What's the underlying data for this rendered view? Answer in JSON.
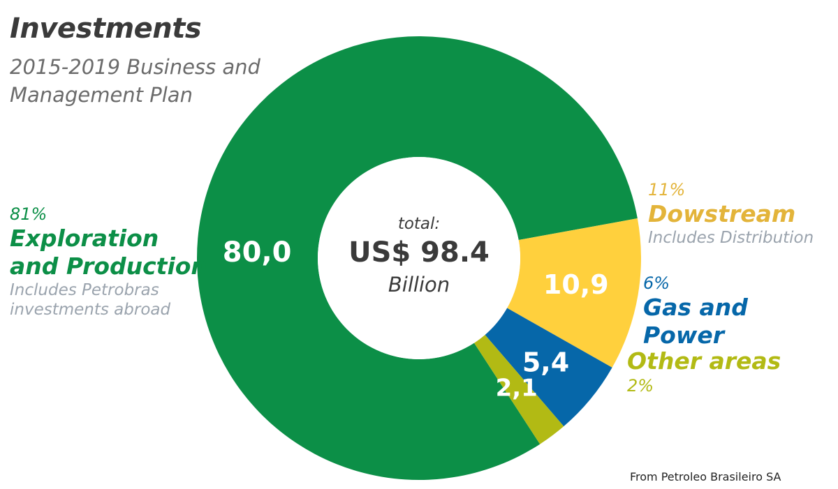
{
  "header": {
    "title": "Investments",
    "subtitle": "2015-2019 Business and Management Plan"
  },
  "center": {
    "line1": "total:",
    "line2": "US$ 98.4",
    "line3": "Billion"
  },
  "source": "From Petroleo Brasileiro SA",
  "colors": {
    "exploration": "#0c8f47",
    "downstream": "#ffd03d",
    "gas_power": "#0667a9",
    "other": "#b2ba14",
    "downstream_text": "#e3b43a"
  },
  "chart_data": {
    "type": "pie",
    "title": "Investments",
    "subtitle": "2015-2019 Business and Management Plan",
    "total": "US$ 98.4 Billion",
    "series": [
      {
        "name": "Exploration and Production",
        "value": 80.0,
        "value_label": "80,0",
        "percent_label": "81%",
        "note": "Includes Petrobras investments abroad",
        "color": "#0c8f47"
      },
      {
        "name": "Dowstream",
        "value": 10.9,
        "value_label": "10,9",
        "percent_label": "11%",
        "note": "Includes Distribution",
        "color": "#ffd03d"
      },
      {
        "name": "Gas and Power",
        "value": 5.4,
        "value_label": "5,4",
        "percent_label": "6%",
        "note": "",
        "color": "#0667a9"
      },
      {
        "name": "Other areas",
        "value": 2.1,
        "value_label": "2,1",
        "percent_label": "2%",
        "note": "",
        "color": "#b2ba14"
      }
    ]
  }
}
